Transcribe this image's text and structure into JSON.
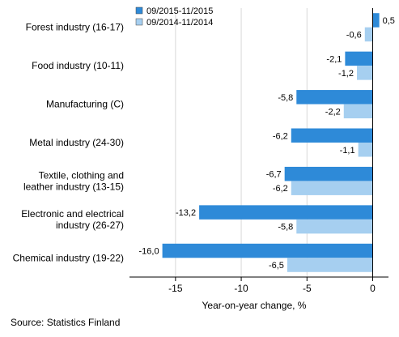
{
  "chart_data": {
    "type": "bar",
    "orientation": "horizontal",
    "categories": [
      [
        "Forest industry (16-17)"
      ],
      [
        "Food industry (10-11)"
      ],
      [
        "Manufacturing (C)"
      ],
      [
        "Metal industry (24-30)"
      ],
      [
        "Textile, clothing and",
        "leather industry (13-15)"
      ],
      [
        "Electronic and electrical",
        "industry (26-27)"
      ],
      [
        "Chemical industry (19-22)"
      ]
    ],
    "series": [
      {
        "name": "09/2015-11/2015",
        "color": "#2e8ad8",
        "values": [
          0.5,
          -2.1,
          -5.8,
          -6.2,
          -6.7,
          -13.2,
          -16.0
        ],
        "labels": [
          "0,5",
          "-2,1",
          "-5,8",
          "-6,2",
          "-6,7",
          "-13,2",
          "-16,0"
        ]
      },
      {
        "name": "09/2014-11/2014",
        "color": "#a6cff0",
        "values": [
          -0.6,
          -1.2,
          -2.2,
          -1.1,
          -6.2,
          -5.8,
          -6.5
        ],
        "labels": [
          "-0,6",
          "-1,2",
          "-2,2",
          "-1,1",
          "-6,2",
          "-5,8",
          "-6,5"
        ]
      }
    ],
    "xlim": [
      -18.5,
      1.2
    ],
    "xticks": [
      -15,
      -10,
      -5,
      0
    ],
    "xtick_labels": [
      "-15",
      "-10",
      "-5",
      "0"
    ],
    "xlabel": "Year-on-year change, %",
    "grid": true,
    "legend_position": "top-right"
  },
  "source": "Source: Statistics Finland"
}
